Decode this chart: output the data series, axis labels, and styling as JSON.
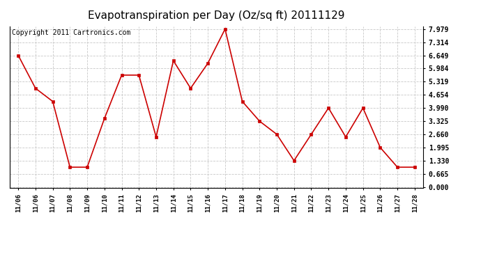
{
  "title": "Evapotranspiration per Day (Oz/sq ft) 20111129",
  "copyright": "Copyright 2011 Cartronics.com",
  "x_labels": [
    "11/06",
    "11/06",
    "11/07",
    "11/08",
    "11/09",
    "11/10",
    "11/11",
    "11/12",
    "11/13",
    "11/14",
    "11/15",
    "11/16",
    "11/17",
    "11/18",
    "11/19",
    "11/20",
    "11/21",
    "11/22",
    "11/23",
    "11/24",
    "11/25",
    "11/26",
    "11/27",
    "11/28"
  ],
  "y_values": [
    6.649,
    4.987,
    4.322,
    0.998,
    0.998,
    3.458,
    5.652,
    5.652,
    2.527,
    6.382,
    4.987,
    6.249,
    7.979,
    4.322,
    3.325,
    2.66,
    1.33,
    2.66,
    3.99,
    2.527,
    3.99,
    1.995,
    0.998,
    0.998
  ],
  "y_ticks": [
    0.0,
    0.665,
    1.33,
    1.995,
    2.66,
    3.325,
    3.99,
    4.654,
    5.319,
    5.984,
    6.649,
    7.314,
    7.979
  ],
  "line_color": "#cc0000",
  "marker": "s",
  "marker_size": 3,
  "background_color": "#ffffff",
  "grid_color": "#c8c8c8",
  "ylim_max": 7.979,
  "title_fontsize": 11,
  "copyright_fontsize": 7,
  "tick_fontsize": 7,
  "x_tick_fontsize": 6.5
}
